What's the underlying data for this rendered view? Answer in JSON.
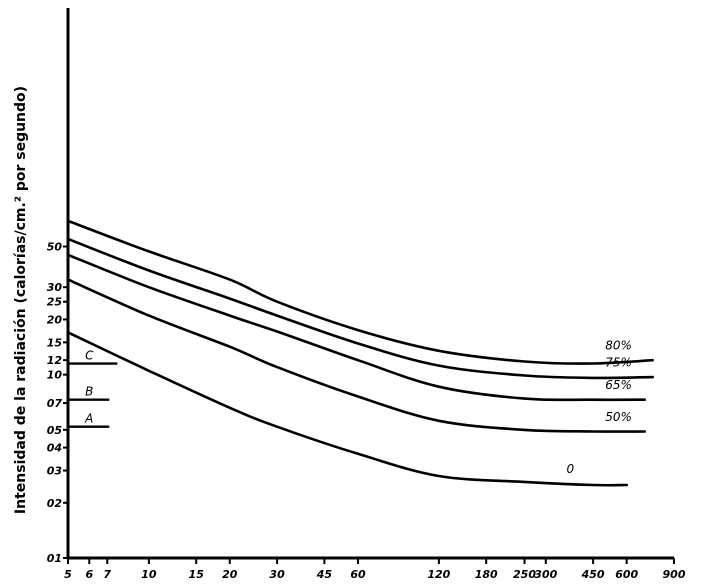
{
  "chart_data": {
    "type": "line",
    "title": "",
    "xlabel": "",
    "ylabel": "Intensidad de la radiación (calorías/cm.² por segundo)",
    "x_scale": "log",
    "y_scale": "log",
    "xlim": [
      5,
      900
    ],
    "ylim": [
      0.1,
      100
    ],
    "x_ticks": [
      {
        "v": 5,
        "label": "5"
      },
      {
        "v": 6,
        "label": "6"
      },
      {
        "v": 7,
        "label": "7"
      },
      {
        "v": 10,
        "label": "10"
      },
      {
        "v": 15,
        "label": "15"
      },
      {
        "v": 20,
        "label": "20"
      },
      {
        "v": 30,
        "label": "30"
      },
      {
        "v": 45,
        "label": "45"
      },
      {
        "v": 60,
        "label": "60"
      },
      {
        "v": 120,
        "label": "120"
      },
      {
        "v": 180,
        "label": "180"
      },
      {
        "v": 250,
        "label": "250"
      },
      {
        "v": 300,
        "label": "300"
      },
      {
        "v": 450,
        "label": "450"
      },
      {
        "v": 600,
        "label": "600"
      },
      {
        "v": 900,
        "label": "900"
      }
    ],
    "y_ticks": [
      {
        "v": 0.1,
        "label": "01"
      },
      {
        "v": 0.2,
        "label": "02"
      },
      {
        "v": 0.3,
        "label": "03"
      },
      {
        "v": 0.4,
        "label": "04"
      },
      {
        "v": 0.5,
        "label": "05"
      },
      {
        "v": 0.7,
        "label": "07"
      },
      {
        "v": 1.0,
        "label": "10"
      },
      {
        "v": 1.2,
        "label": "12"
      },
      {
        "v": 1.5,
        "label": "15"
      },
      {
        "v": 2.0,
        "label": "20"
      },
      {
        "v": 2.5,
        "label": "25"
      },
      {
        "v": 3.0,
        "label": "30"
      },
      {
        "v": 5.0,
        "label": "50"
      }
    ],
    "series": [
      {
        "name": "80%",
        "label": "80%",
        "points": [
          [
            5,
            6.9
          ],
          [
            10,
            4.7
          ],
          [
            20,
            3.3
          ],
          [
            30,
            2.5
          ],
          [
            60,
            1.75
          ],
          [
            120,
            1.35
          ],
          [
            250,
            1.18
          ],
          [
            450,
            1.15
          ],
          [
            750,
            1.2
          ]
        ]
      },
      {
        "name": "75%",
        "label": "75%",
        "points": [
          [
            5,
            5.5
          ],
          [
            10,
            3.7
          ],
          [
            20,
            2.6
          ],
          [
            30,
            2.1
          ],
          [
            60,
            1.48
          ],
          [
            120,
            1.12
          ],
          [
            250,
            0.99
          ],
          [
            450,
            0.96
          ],
          [
            750,
            0.97
          ]
        ]
      },
      {
        "name": "65%",
        "label": "65%",
        "points": [
          [
            5,
            4.5
          ],
          [
            10,
            3.0
          ],
          [
            20,
            2.1
          ],
          [
            30,
            1.72
          ],
          [
            60,
            1.2
          ],
          [
            120,
            0.86
          ],
          [
            250,
            0.74
          ],
          [
            450,
            0.73
          ],
          [
            700,
            0.73
          ]
        ]
      },
      {
        "name": "50%",
        "label": "50%",
        "points": [
          [
            5,
            3.3
          ],
          [
            10,
            2.1
          ],
          [
            20,
            1.42
          ],
          [
            30,
            1.1
          ],
          [
            60,
            0.76
          ],
          [
            120,
            0.56
          ],
          [
            250,
            0.5
          ],
          [
            450,
            0.49
          ],
          [
            700,
            0.49
          ]
        ]
      },
      {
        "name": "0",
        "label": "0",
        "points": [
          [
            5,
            1.7
          ],
          [
            10,
            1.05
          ],
          [
            20,
            0.66
          ],
          [
            30,
            0.52
          ],
          [
            60,
            0.37
          ],
          [
            120,
            0.28
          ],
          [
            250,
            0.26
          ],
          [
            450,
            0.25
          ],
          [
            600,
            0.25
          ]
        ]
      }
    ],
    "reference_lines": [
      {
        "label": "A",
        "y": 0.52,
        "x_end": 7
      },
      {
        "label": "B",
        "y": 0.73,
        "x_end": 7
      },
      {
        "label": "C",
        "y": 1.15,
        "x_end": 7.5
      }
    ]
  }
}
